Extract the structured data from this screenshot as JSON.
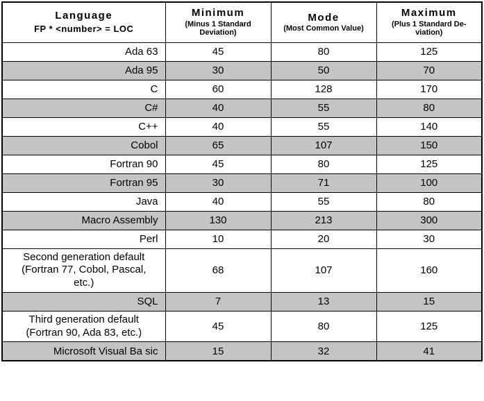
{
  "header": {
    "language_title": "Language",
    "language_subtitle": "FP * <number> = LOC",
    "cols": [
      {
        "title": "Minimum",
        "subtitle": "(Minus 1 Standard\nDeviation)"
      },
      {
        "title": "Mode",
        "subtitle": "(Most Common Value)"
      },
      {
        "title": "Maximum",
        "subtitle": "(Plus 1 Standard De-\nviation)"
      }
    ]
  },
  "rows": [
    {
      "language": "Ada 63",
      "min": "45",
      "mode": "80",
      "max": "125",
      "shaded": false,
      "multiline": false
    },
    {
      "language": "Ada 95",
      "min": "30",
      "mode": "50",
      "max": "70",
      "shaded": true,
      "multiline": false
    },
    {
      "language": "C",
      "min": "60",
      "mode": "128",
      "max": "170",
      "shaded": false,
      "multiline": false
    },
    {
      "language": "C#",
      "min": "40",
      "mode": "55",
      "max": "80",
      "shaded": true,
      "multiline": false
    },
    {
      "language": "C++",
      "min": "40",
      "mode": "55",
      "max": "140",
      "shaded": false,
      "multiline": false
    },
    {
      "language": "Cobol",
      "min": "65",
      "mode": "107",
      "max": "150",
      "shaded": true,
      "multiline": false
    },
    {
      "language": "Fortran 90",
      "min": "45",
      "mode": "80",
      "max": "125",
      "shaded": false,
      "multiline": false
    },
    {
      "language": "Fortran 95",
      "min": "30",
      "mode": "71",
      "max": "100",
      "shaded": true,
      "multiline": false
    },
    {
      "language": "Java",
      "min": "40",
      "mode": "55",
      "max": "80",
      "shaded": false,
      "multiline": false
    },
    {
      "language": "Macro Assembly",
      "min": "130",
      "mode": "213",
      "max": "300",
      "shaded": true,
      "multiline": false
    },
    {
      "language": "Perl",
      "min": "10",
      "mode": "20",
      "max": "30",
      "shaded": false,
      "multiline": false
    },
    {
      "language": "Second generation default\n(Fortran 77, Cobol, Pascal,\netc.)",
      "min": "68",
      "mode": "107",
      "max": "160",
      "shaded": false,
      "multiline": true
    },
    {
      "language": "SQL",
      "min": "7",
      "mode": "13",
      "max": "15",
      "shaded": true,
      "multiline": false
    },
    {
      "language": "Third generation default\n(Fortran 90, Ada 83, etc.)",
      "min": "45",
      "mode": "80",
      "max": "125",
      "shaded": false,
      "multiline": true
    },
    {
      "language": "Microsoft Visual Ba sic",
      "min": "15",
      "mode": "32",
      "max": "41",
      "shaded": true,
      "multiline": false
    }
  ]
}
